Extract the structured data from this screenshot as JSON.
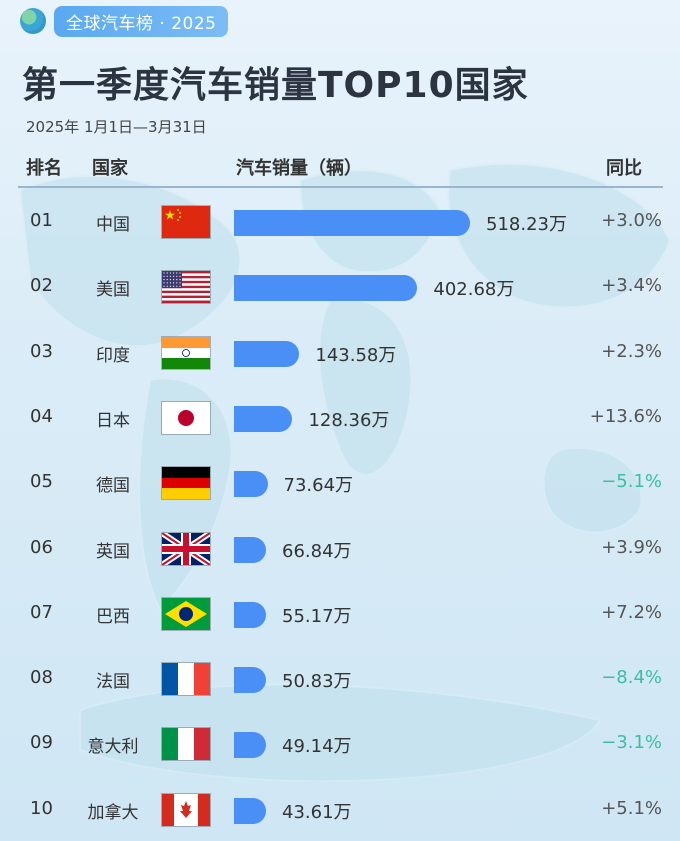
{
  "badge": {
    "text": "全球汽车榜 · 2025",
    "icon": "globe-icon"
  },
  "title": "第一季度汽车销量TOP10国家",
  "subtitle": "2025年 1月1日—3月31日",
  "headers": {
    "rank": "排名",
    "country": "国家",
    "sales": "汽车销量（辆）",
    "yoy": "同比"
  },
  "colors": {
    "bar": "#4a8ff5",
    "positive": "#555555",
    "negative": "#3bbfa0"
  },
  "rows": [
    {
      "rank": "01",
      "country": "中国",
      "flag": "china-flag-icon",
      "value": 518.23,
      "value_label": "518.23万",
      "yoy": "+3.0%"
    },
    {
      "rank": "02",
      "country": "美国",
      "flag": "usa-flag-icon",
      "value": 402.68,
      "value_label": "402.68万",
      "yoy": "+3.4%"
    },
    {
      "rank": "03",
      "country": "印度",
      "flag": "india-flag-icon",
      "value": 143.58,
      "value_label": "143.58万",
      "yoy": "+2.3%"
    },
    {
      "rank": "04",
      "country": "日本",
      "flag": "japan-flag-icon",
      "value": 128.36,
      "value_label": "128.36万",
      "yoy": "+13.6%"
    },
    {
      "rank": "05",
      "country": "德国",
      "flag": "germany-flag-icon",
      "value": 73.64,
      "value_label": "73.64万",
      "yoy": "−5.1%"
    },
    {
      "rank": "06",
      "country": "英国",
      "flag": "uk-flag-icon",
      "value": 66.84,
      "value_label": "66.84万",
      "yoy": "+3.9%"
    },
    {
      "rank": "07",
      "country": "巴西",
      "flag": "brazil-flag-icon",
      "value": 55.17,
      "value_label": "55.17万",
      "yoy": "+7.2%"
    },
    {
      "rank": "08",
      "country": "法国",
      "flag": "france-flag-icon",
      "value": 50.83,
      "value_label": "50.83万",
      "yoy": "−8.4%"
    },
    {
      "rank": "09",
      "country": "意大利",
      "flag": "italy-flag-icon",
      "value": 49.14,
      "value_label": "49.14万",
      "yoy": "−3.1%"
    },
    {
      "rank": "10",
      "country": "加拿大",
      "flag": "canada-flag-icon",
      "value": 43.61,
      "value_label": "43.61万",
      "yoy": "+5.1%"
    }
  ],
  "chart_data": {
    "type": "bar",
    "orientation": "horizontal",
    "title": "第一季度汽车销量TOP10国家",
    "subtitle": "2025年 1月1日—3月31日",
    "categories": [
      "中国",
      "美国",
      "印度",
      "日本",
      "德国",
      "英国",
      "巴西",
      "法国",
      "意大利",
      "加拿大"
    ],
    "values": [
      518.23,
      402.68,
      143.58,
      128.36,
      73.64,
      66.84,
      55.17,
      50.83,
      49.14,
      43.61
    ],
    "unit": "万",
    "yoy": [
      "+3.0%",
      "+3.4%",
      "+2.3%",
      "+13.6%",
      "−5.1%",
      "+3.9%",
      "+7.2%",
      "−8.4%",
      "−3.1%",
      "+5.1%"
    ]
  }
}
